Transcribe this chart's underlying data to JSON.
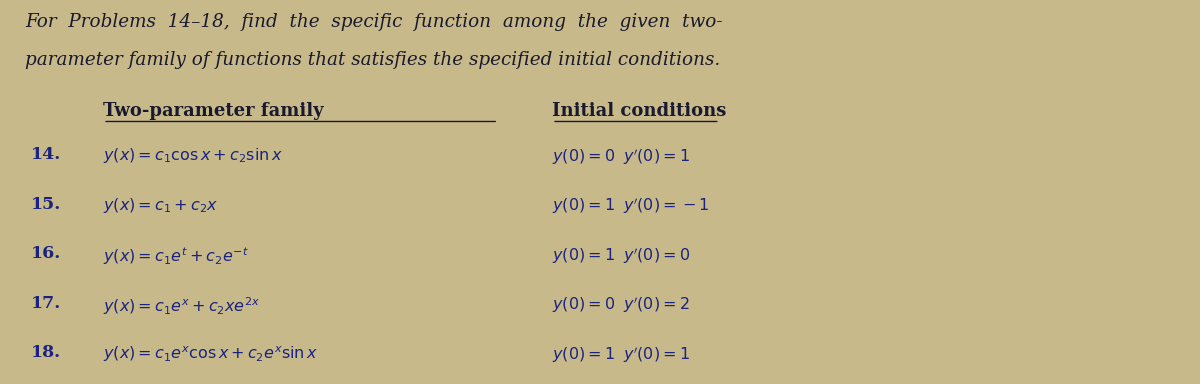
{
  "bg_color": "#c8b98a",
  "text_color": "#1a1a2e",
  "fig_width": 12.0,
  "fig_height": 3.84,
  "dpi": 100,
  "intro_line1": "For  Problems  14–18,  find  the  specific  function  among  the  given  two-",
  "intro_line2": "parameter family of functions that satisfies the specified initial conditions.",
  "header_family": "Two-parameter family",
  "header_ic": "Initial conditions",
  "rows": [
    {
      "num": "14.",
      "family": "$y(x) = c_1 \\cos x + c_2 \\sin x$",
      "ic": "$y(0) = 0 \\;\\; y'(0) = 1$"
    },
    {
      "num": "15.",
      "family": "$y(x) = c_1 + c_2 x$",
      "ic": "$y(0) = 1 \\;\\; y'(0) = -1$"
    },
    {
      "num": "16.",
      "family": "$y(x) = c_1 e^{t} + c_2 e^{-t}$",
      "ic": "$y(0) = 1 \\;\\; y'(0) = 0$"
    },
    {
      "num": "17.",
      "family": "$y(x) = c_1 e^{x} + c_2 x e^{2x}$",
      "ic": "$y(0) = 0 \\;\\; y'(0) = 2$"
    },
    {
      "num": "18.",
      "family": "$y(x) = c_1 e^{x} \\cos x + c_2 e^{x} \\sin x$",
      "ic": "$y(0) = 1 \\;\\; y'(0) = 1$"
    }
  ]
}
